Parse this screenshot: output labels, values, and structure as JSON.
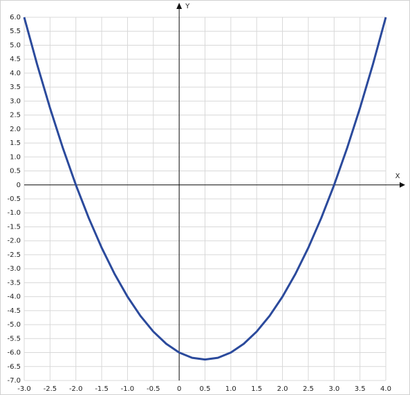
{
  "chart_data": {
    "type": "line",
    "x_label": "X",
    "y_label": "Y",
    "x": [
      -3,
      -2.75,
      -2.5,
      -2.25,
      -2,
      -1.75,
      -1.5,
      -1.25,
      -1,
      -0.75,
      -0.5,
      -0.25,
      0,
      0.25,
      0.5,
      0.75,
      1,
      1.25,
      1.5,
      1.75,
      2,
      2.25,
      2.5,
      2.75,
      3,
      3.25,
      3.5,
      3.75,
      4
    ],
    "series": [
      {
        "color": "#2b4a9c",
        "values": [
          6,
          4.3125,
          2.75,
          1.3125,
          0,
          -1.1875,
          -2.25,
          -3.1875,
          -4,
          -4.6875,
          -5.25,
          -5.6875,
          -6,
          -6.1875,
          -6.25,
          -6.1875,
          -6,
          -5.6875,
          -5.25,
          -4.6875,
          -4,
          -3.1875,
          -2.25,
          -1.1875,
          0,
          1.3125,
          2.75,
          4.3125,
          6
        ]
      }
    ],
    "xlim": [
      -3,
      4
    ],
    "ylim": [
      -7,
      6
    ],
    "xticks": [
      {
        "value": -3,
        "label": "-3.0"
      },
      -2.5,
      {
        "value": -2,
        "label": "-2.0"
      },
      -1.5,
      {
        "value": -1,
        "label": "-1.0"
      },
      -0.5,
      0,
      0.5,
      {
        "value": 1,
        "label": "1.0"
      },
      1.5,
      {
        "value": 2,
        "label": "2.0"
      },
      2.5,
      {
        "value": 3,
        "label": "3.0"
      },
      3.5,
      {
        "value": 4,
        "label": "4.0"
      }
    ],
    "yticks": [
      {
        "value": -7,
        "label": "-7.0"
      },
      -6.5,
      {
        "value": -6,
        "label": "-6.0"
      },
      -5.5,
      {
        "value": -5,
        "label": "-5.0"
      },
      -4.5,
      {
        "value": -4,
        "label": "-4.0"
      },
      -3.5,
      {
        "value": -3,
        "label": "-3.0"
      },
      -2.5,
      {
        "value": -2,
        "label": "-2.0"
      },
      -1.5,
      {
        "value": -1,
        "label": "-1.0"
      },
      -0.5,
      0,
      0.5,
      {
        "value": 1,
        "label": "1.0"
      },
      1.5,
      {
        "value": 2,
        "label": "2.0"
      },
      2.5,
      {
        "value": 3,
        "label": "3.0"
      },
      3.5,
      {
        "value": 4,
        "label": "4.0"
      },
      4.5,
      {
        "value": 5,
        "label": "5.0"
      },
      5.5,
      {
        "value": 6,
        "label": "6.0"
      }
    ],
    "grid": true
  }
}
